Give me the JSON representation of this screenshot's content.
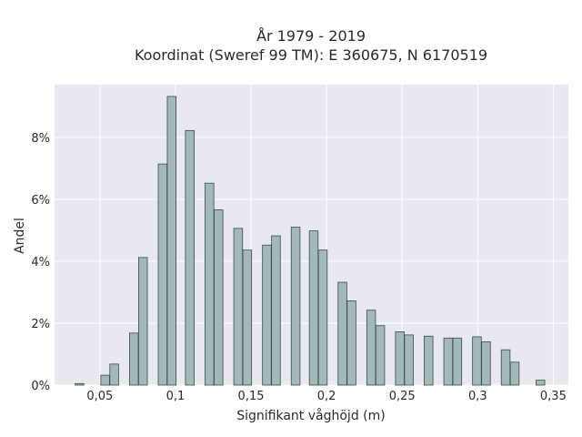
{
  "chart_data": {
    "type": "bar",
    "title": "År 1979 - 2019",
    "subtitle": "Koordinat (Sweref 99 TM): E 360675, N 6170519",
    "xlabel": "Signifikant våghöjd (m)",
    "ylabel": "Andel",
    "xlim": [
      0.02,
      0.36
    ],
    "ylim": [
      0,
      0.097
    ],
    "x_ticks": [
      0.05,
      0.1,
      0.15,
      0.2,
      0.25,
      0.3,
      0.35
    ],
    "x_tick_labels": [
      "0,05",
      "0,1",
      "0,15",
      "0,2",
      "0,25",
      "0,3",
      "0,35"
    ],
    "y_ticks": [
      0,
      0.02,
      0.04,
      0.06,
      0.08
    ],
    "y_tick_labels": [
      "0%",
      "2%",
      "4%",
      "6%",
      "8%"
    ],
    "grid": true,
    "colors": {
      "bar_fill": "#a3b8b9",
      "bar_stroke": "#3b4a4a",
      "plot_bg": "#e8e8f1",
      "grid": "#ffffff"
    },
    "bin_width": 0.0058,
    "x": [
      0.0365,
      0.0535,
      0.0595,
      0.0725,
      0.0785,
      0.0915,
      0.0975,
      0.1095,
      0.1225,
      0.1285,
      0.1415,
      0.1475,
      0.1605,
      0.1665,
      0.1795,
      0.1915,
      0.1975,
      0.2105,
      0.2165,
      0.2295,
      0.2355,
      0.2485,
      0.2545,
      0.2675,
      0.2805,
      0.2865,
      0.2995,
      0.3055,
      0.3185,
      0.3245,
      0.3415
    ],
    "values": [
      0.0005,
      0.0032,
      0.0068,
      0.0168,
      0.0412,
      0.0714,
      0.0932,
      0.0822,
      0.0652,
      0.0566,
      0.0506,
      0.0436,
      0.0452,
      0.0482,
      0.051,
      0.0498,
      0.0436,
      0.0332,
      0.0272,
      0.0242,
      0.0192,
      0.0172,
      0.0162,
      0.0158,
      0.0152,
      0.0152,
      0.0156,
      0.014,
      0.0114,
      0.0074,
      0.0016
    ]
  }
}
